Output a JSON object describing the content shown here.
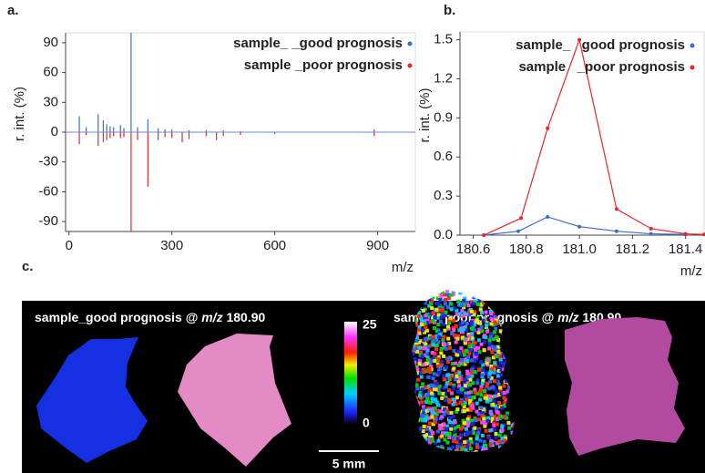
{
  "chart_data": [
    {
      "type": "stick",
      "panel_label": "a.",
      "y_label": "r. int. (%)",
      "x_label": "m/z",
      "xlim": [
        -10,
        1010
      ],
      "xticks": [
        0,
        300,
        600,
        900
      ],
      "ylim": [
        -100,
        100
      ],
      "yticks": [
        90,
        60,
        30,
        0,
        -30,
        -60,
        -90
      ],
      "series": [
        {
          "name": "sample_ _good prognosis",
          "color": "#3a6fc4",
          "x": [
            30,
            50,
            85,
            100,
            110,
            120,
            130,
            150,
            160,
            181,
            200,
            230,
            260,
            280,
            300,
            350,
            400,
            450,
            500,
            890
          ],
          "values": [
            16,
            5,
            18,
            12,
            8,
            6,
            5,
            7,
            4,
            100,
            5,
            13,
            4,
            3,
            3,
            2,
            2,
            2,
            1,
            3
          ]
        },
        {
          "name": "sample _poor prognosis",
          "color": "#e8262a",
          "x": [
            30,
            50,
            85,
            100,
            110,
            120,
            130,
            150,
            160,
            181,
            200,
            230,
            260,
            280,
            300,
            330,
            350,
            400,
            430,
            450,
            500,
            600,
            890
          ],
          "values": [
            -12,
            -3,
            -14,
            -10,
            -8,
            -6,
            -4,
            -6,
            -5,
            -100,
            -8,
            -55,
            -8,
            -5,
            -6,
            -10,
            -7,
            -4,
            -8,
            -4,
            -3,
            -2,
            -4
          ]
        }
      ]
    },
    {
      "type": "line",
      "panel_label": "b.",
      "y_label": "r. int. (%)",
      "x_label": "m/z",
      "xlim": [
        180.55,
        181.47
      ],
      "xticks": [
        180.6,
        180.8,
        {
          "value": 181,
          "label": "181.0"
        },
        181.2,
        181.4
      ],
      "ylim": [
        0,
        1.56
      ],
      "yticks": [
        {
          "value": 0,
          "label": "0.0"
        },
        0.3,
        0.6,
        0.9,
        1.2,
        1.5
      ],
      "series": [
        {
          "name": "sample_   good prognosis",
          "color": "#3a6fc4",
          "x": [
            180.64,
            180.77,
            180.88,
            181.0,
            181.14,
            181.27,
            181.4
          ],
          "values": [
            0,
            0.03,
            0.14,
            0.065,
            0.03,
            0.01,
            0.005
          ]
        },
        {
          "name": "sample   _poor prognosis",
          "color": "#e8262a",
          "x": [
            180.64,
            180.78,
            180.88,
            181.0,
            181.14,
            181.27,
            181.4,
            181.47
          ],
          "values": [
            0,
            0.13,
            0.82,
            1.5,
            0.2,
            0.05,
            0.01,
            0.005
          ]
        }
      ]
    }
  ],
  "panel_c": {
    "panel_label": "c.",
    "left_title": {
      "pre": "sample_good  prognosis @ ",
      "italic": "m/z",
      "post": " 180.90"
    },
    "right_title": {
      "pre": "sample_poor prognosis @ ",
      "italic": "m/z",
      "post": " 180.90"
    },
    "colorbar_max": "25",
    "colorbar_min": "0",
    "scale_bar": "5 mm"
  }
}
